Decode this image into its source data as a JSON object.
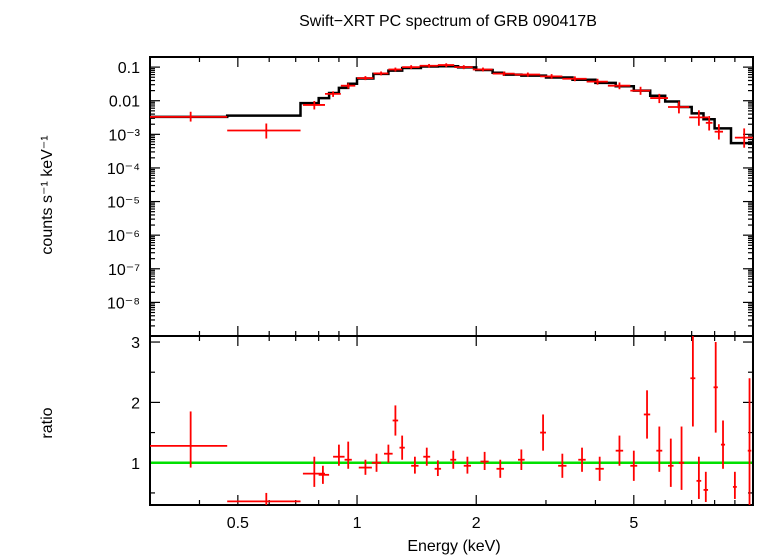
{
  "chart_data": {
    "type": "line",
    "title": "Swift−XRT PC spectrum of GRB 090417B",
    "xlabel": "Energy (keV)",
    "xscale": "log",
    "xlim": [
      0.3,
      10
    ],
    "x_ticks": [
      {
        "value": 0.5,
        "label": "0.5"
      },
      {
        "value": 1,
        "label": "1"
      },
      {
        "value": 2,
        "label": "2"
      },
      {
        "value": 5,
        "label": "5"
      }
    ],
    "colors": {
      "data": "#ff0000",
      "model": "#000000",
      "unity": "#00e000"
    },
    "panels": [
      {
        "name": "spectrum",
        "ylabel": "counts s⁻¹ keV⁻¹",
        "yscale": "log",
        "ylim": [
          1e-09,
          0.2
        ],
        "y_ticks": [
          {
            "value": 0.1,
            "label": "0.1"
          },
          {
            "value": 0.01,
            "label": "0.01"
          },
          {
            "value": 0.001,
            "label": "10⁻³"
          },
          {
            "value": 0.0001,
            "label": "10⁻⁴"
          },
          {
            "value": 1e-05,
            "label": "10⁻⁵"
          },
          {
            "value": 1e-06,
            "label": "10⁻⁶"
          },
          {
            "value": 1e-07,
            "label": "10⁻⁷"
          },
          {
            "value": 1e-08,
            "label": "10⁻⁸"
          }
        ],
        "data_points": [
          {
            "x": 0.38,
            "xlo": 0.3,
            "xhi": 0.47,
            "y": 0.0033,
            "ylo": 0.0024,
            "yhi": 0.0047
          },
          {
            "x": 0.59,
            "xlo": 0.47,
            "xhi": 0.72,
            "y": 0.0013,
            "ylo": 0.00075,
            "yhi": 0.0021
          },
          {
            "x": 0.78,
            "xlo": 0.73,
            "xhi": 0.83,
            "y": 0.0075,
            "ylo": 0.0055,
            "yhi": 0.0098
          },
          {
            "x": 0.87,
            "xlo": 0.83,
            "xhi": 0.91,
            "y": 0.016,
            "ylo": 0.013,
            "yhi": 0.019
          },
          {
            "x": 0.95,
            "xlo": 0.91,
            "xhi": 0.99,
            "y": 0.028,
            "ylo": 0.023,
            "yhi": 0.033
          },
          {
            "x": 1.05,
            "xlo": 1.0,
            "xhi": 1.1,
            "y": 0.047,
            "ylo": 0.041,
            "yhi": 0.054
          },
          {
            "x": 1.15,
            "xlo": 1.1,
            "xhi": 1.2,
            "y": 0.065,
            "ylo": 0.057,
            "yhi": 0.074
          },
          {
            "x": 1.25,
            "xlo": 1.2,
            "xhi": 1.3,
            "y": 0.085,
            "ylo": 0.074,
            "yhi": 0.097
          },
          {
            "x": 1.37,
            "xlo": 1.3,
            "xhi": 1.44,
            "y": 0.1,
            "ylo": 0.088,
            "yhi": 0.114
          },
          {
            "x": 1.52,
            "xlo": 1.44,
            "xhi": 1.6,
            "y": 0.11,
            "ylo": 0.097,
            "yhi": 0.124
          },
          {
            "x": 1.68,
            "xlo": 1.6,
            "xhi": 1.76,
            "y": 0.115,
            "ylo": 0.1,
            "yhi": 0.13
          },
          {
            "x": 1.86,
            "xlo": 1.76,
            "xhi": 1.96,
            "y": 0.1,
            "ylo": 0.087,
            "yhi": 0.114
          },
          {
            "x": 2.08,
            "xlo": 1.96,
            "xhi": 2.2,
            "y": 0.085,
            "ylo": 0.074,
            "yhi": 0.097
          },
          {
            "x": 2.35,
            "xlo": 2.2,
            "xhi": 2.5,
            "y": 0.064,
            "ylo": 0.055,
            "yhi": 0.074
          },
          {
            "x": 2.7,
            "xlo": 2.5,
            "xhi": 2.9,
            "y": 0.06,
            "ylo": 0.052,
            "yhi": 0.069
          },
          {
            "x": 3.1,
            "xlo": 2.9,
            "xhi": 3.3,
            "y": 0.053,
            "ylo": 0.045,
            "yhi": 0.062
          },
          {
            "x": 3.55,
            "xlo": 3.3,
            "xhi": 3.8,
            "y": 0.045,
            "ylo": 0.038,
            "yhi": 0.053
          },
          {
            "x": 4.05,
            "xlo": 3.8,
            "xhi": 4.3,
            "y": 0.037,
            "ylo": 0.03,
            "yhi": 0.045
          },
          {
            "x": 4.6,
            "xlo": 4.3,
            "xhi": 4.9,
            "y": 0.028,
            "ylo": 0.022,
            "yhi": 0.035
          },
          {
            "x": 5.2,
            "xlo": 4.9,
            "xhi": 5.5,
            "y": 0.02,
            "ylo": 0.015,
            "yhi": 0.026
          },
          {
            "x": 5.8,
            "xlo": 5.5,
            "xhi": 6.1,
            "y": 0.012,
            "ylo": 0.0085,
            "yhi": 0.016
          },
          {
            "x": 6.5,
            "xlo": 6.1,
            "xhi": 6.9,
            "y": 0.0065,
            "ylo": 0.0042,
            "yhi": 0.0095
          },
          {
            "x": 7.3,
            "xlo": 6.9,
            "xhi": 7.7,
            "y": 0.0032,
            "ylo": 0.0018,
            "yhi": 0.0052
          },
          {
            "x": 7.75,
            "xlo": 7.6,
            "xhi": 7.9,
            "y": 0.0022,
            "ylo": 0.0013,
            "yhi": 0.0035
          },
          {
            "x": 8.2,
            "xlo": 8.0,
            "xhi": 8.4,
            "y": 0.0012,
            "ylo": 0.0007,
            "yhi": 0.002
          },
          {
            "x": 9.5,
            "xlo": 9.0,
            "xhi": 10.0,
            "y": 0.0008,
            "ylo": 0.0004,
            "yhi": 0.0015
          }
        ],
        "model_steps": [
          {
            "x0": 0.3,
            "x1": 0.47,
            "y": 0.0033
          },
          {
            "x0": 0.47,
            "x1": 0.72,
            "y": 0.0036
          },
          {
            "x0": 0.72,
            "x1": 0.8,
            "y": 0.0085
          },
          {
            "x0": 0.8,
            "x1": 0.85,
            "y": 0.012
          },
          {
            "x0": 0.85,
            "x1": 0.9,
            "y": 0.017
          },
          {
            "x0": 0.9,
            "x1": 0.95,
            "y": 0.024
          },
          {
            "x0": 0.95,
            "x1": 1.0,
            "y": 0.032
          },
          {
            "x0": 1.0,
            "x1": 1.1,
            "y": 0.046
          },
          {
            "x0": 1.1,
            "x1": 1.2,
            "y": 0.063
          },
          {
            "x0": 1.2,
            "x1": 1.3,
            "y": 0.079
          },
          {
            "x0": 1.3,
            "x1": 1.45,
            "y": 0.094
          },
          {
            "x0": 1.45,
            "x1": 1.6,
            "y": 0.104
          },
          {
            "x0": 1.6,
            "x1": 1.8,
            "y": 0.106
          },
          {
            "x0": 1.8,
            "x1": 2.0,
            "y": 0.098
          },
          {
            "x0": 2.0,
            "x1": 2.2,
            "y": 0.082
          },
          {
            "x0": 2.2,
            "x1": 2.35,
            "y": 0.068
          },
          {
            "x0": 2.35,
            "x1": 2.6,
            "y": 0.06
          },
          {
            "x0": 2.6,
            "x1": 3.0,
            "y": 0.056
          },
          {
            "x0": 3.0,
            "x1": 3.5,
            "y": 0.049
          },
          {
            "x0": 3.5,
            "x1": 4.0,
            "y": 0.042
          },
          {
            "x0": 4.0,
            "x1": 4.5,
            "y": 0.034
          },
          {
            "x0": 4.5,
            "x1": 5.0,
            "y": 0.027
          },
          {
            "x0": 5.0,
            "x1": 5.5,
            "y": 0.02
          },
          {
            "x0": 5.5,
            "x1": 6.0,
            "y": 0.014
          },
          {
            "x0": 6.0,
            "x1": 6.5,
            "y": 0.0095
          },
          {
            "x0": 6.5,
            "x1": 7.0,
            "y": 0.0065
          },
          {
            "x0": 7.0,
            "x1": 7.5,
            "y": 0.0042
          },
          {
            "x0": 7.5,
            "x1": 8.0,
            "y": 0.0028
          },
          {
            "x0": 8.0,
            "x1": 8.8,
            "y": 0.0015
          },
          {
            "x0": 8.8,
            "x1": 10.0,
            "y": 0.00055
          }
        ]
      },
      {
        "name": "ratio",
        "ylabel": "ratio",
        "yscale": "linear",
        "ylim": [
          0.3,
          3.1
        ],
        "y_ticks": [
          {
            "value": 1,
            "label": "1"
          },
          {
            "value": 2,
            "label": "2"
          },
          {
            "value": 3,
            "label": "3"
          }
        ],
        "unity_line": 1,
        "data_points": [
          {
            "x": 0.38,
            "xlo": 0.3,
            "xhi": 0.47,
            "y": 1.28,
            "ylo": 0.92,
            "yhi": 1.85
          },
          {
            "x": 0.59,
            "xlo": 0.47,
            "xhi": 0.72,
            "y": 0.36,
            "ylo": 0.3,
            "yhi": 0.5
          },
          {
            "x": 0.78,
            "xlo": 0.73,
            "xhi": 0.83,
            "y": 0.82,
            "ylo": 0.6,
            "yhi": 1.1
          },
          {
            "x": 0.82,
            "xlo": 0.8,
            "xhi": 0.85,
            "y": 0.8,
            "ylo": 0.65,
            "yhi": 0.95
          },
          {
            "x": 0.9,
            "xlo": 0.87,
            "xhi": 0.93,
            "y": 1.1,
            "ylo": 0.95,
            "yhi": 1.3
          },
          {
            "x": 0.95,
            "xlo": 0.93,
            "xhi": 0.97,
            "y": 1.05,
            "ylo": 0.9,
            "yhi": 1.35
          },
          {
            "x": 1.05,
            "xlo": 1.01,
            "xhi": 1.09,
            "y": 0.92,
            "ylo": 0.8,
            "yhi": 1.05
          },
          {
            "x": 1.12,
            "xlo": 1.09,
            "xhi": 1.15,
            "y": 1.0,
            "ylo": 0.85,
            "yhi": 1.15
          },
          {
            "x": 1.2,
            "xlo": 1.17,
            "xhi": 1.23,
            "y": 1.15,
            "ylo": 1.0,
            "yhi": 1.3
          },
          {
            "x": 1.25,
            "xlo": 1.23,
            "xhi": 1.27,
            "y": 1.7,
            "ylo": 1.45,
            "yhi": 1.95
          },
          {
            "x": 1.3,
            "xlo": 1.28,
            "xhi": 1.32,
            "y": 1.25,
            "ylo": 1.05,
            "yhi": 1.45
          },
          {
            "x": 1.4,
            "xlo": 1.37,
            "xhi": 1.43,
            "y": 0.95,
            "ylo": 0.82,
            "yhi": 1.1
          },
          {
            "x": 1.5,
            "xlo": 1.47,
            "xhi": 1.53,
            "y": 1.1,
            "ylo": 0.95,
            "yhi": 1.25
          },
          {
            "x": 1.6,
            "xlo": 1.57,
            "xhi": 1.63,
            "y": 0.9,
            "ylo": 0.78,
            "yhi": 1.04
          },
          {
            "x": 1.75,
            "xlo": 1.72,
            "xhi": 1.78,
            "y": 1.05,
            "ylo": 0.9,
            "yhi": 1.2
          },
          {
            "x": 1.9,
            "xlo": 1.86,
            "xhi": 1.94,
            "y": 0.95,
            "ylo": 0.82,
            "yhi": 1.1
          },
          {
            "x": 2.1,
            "xlo": 2.05,
            "xhi": 2.15,
            "y": 1.02,
            "ylo": 0.88,
            "yhi": 1.18
          },
          {
            "x": 2.3,
            "xlo": 2.25,
            "xhi": 2.35,
            "y": 0.9,
            "ylo": 0.75,
            "yhi": 1.05
          },
          {
            "x": 2.6,
            "xlo": 2.55,
            "xhi": 2.65,
            "y": 1.05,
            "ylo": 0.88,
            "yhi": 1.22
          },
          {
            "x": 2.95,
            "xlo": 2.9,
            "xhi": 3.0,
            "y": 1.5,
            "ylo": 1.2,
            "yhi": 1.8
          },
          {
            "x": 3.3,
            "xlo": 3.22,
            "xhi": 3.38,
            "y": 0.95,
            "ylo": 0.75,
            "yhi": 1.15
          },
          {
            "x": 3.7,
            "xlo": 3.62,
            "xhi": 3.78,
            "y": 1.05,
            "ylo": 0.85,
            "yhi": 1.25
          },
          {
            "x": 4.1,
            "xlo": 4.0,
            "xhi": 4.2,
            "y": 0.9,
            "ylo": 0.7,
            "yhi": 1.1
          },
          {
            "x": 4.6,
            "xlo": 4.5,
            "xhi": 4.7,
            "y": 1.2,
            "ylo": 0.95,
            "yhi": 1.45
          },
          {
            "x": 5.0,
            "xlo": 4.9,
            "xhi": 5.1,
            "y": 0.95,
            "ylo": 0.7,
            "yhi": 1.2
          },
          {
            "x": 5.4,
            "xlo": 5.3,
            "xhi": 5.5,
            "y": 1.8,
            "ylo": 1.4,
            "yhi": 2.2
          },
          {
            "x": 5.8,
            "xlo": 5.7,
            "xhi": 5.9,
            "y": 1.2,
            "ylo": 0.85,
            "yhi": 1.6
          },
          {
            "x": 6.2,
            "xlo": 6.1,
            "xhi": 6.3,
            "y": 0.95,
            "ylo": 0.6,
            "yhi": 1.4
          },
          {
            "x": 6.6,
            "xlo": 6.5,
            "xhi": 6.7,
            "y": 1.0,
            "ylo": 0.55,
            "yhi": 1.6
          },
          {
            "x": 7.05,
            "xlo": 6.95,
            "xhi": 7.15,
            "y": 2.4,
            "ylo": 1.6,
            "yhi": 3.1
          },
          {
            "x": 7.3,
            "xlo": 7.2,
            "xhi": 7.4,
            "y": 0.7,
            "ylo": 0.4,
            "yhi": 1.1
          },
          {
            "x": 7.6,
            "xlo": 7.5,
            "xhi": 7.7,
            "y": 0.55,
            "ylo": 0.35,
            "yhi": 0.85
          },
          {
            "x": 8.05,
            "xlo": 7.95,
            "xhi": 8.15,
            "y": 2.25,
            "ylo": 1.5,
            "yhi": 3.0
          },
          {
            "x": 8.4,
            "xlo": 8.3,
            "xhi": 8.5,
            "y": 1.3,
            "ylo": 0.9,
            "yhi": 1.7
          },
          {
            "x": 9.0,
            "xlo": 8.9,
            "xhi": 9.1,
            "y": 0.6,
            "ylo": 0.4,
            "yhi": 0.85
          },
          {
            "x": 9.8,
            "xlo": 9.7,
            "xhi": 9.9,
            "y": 1.2,
            "ylo": 0.3,
            "yhi": 2.4
          }
        ]
      }
    ]
  }
}
